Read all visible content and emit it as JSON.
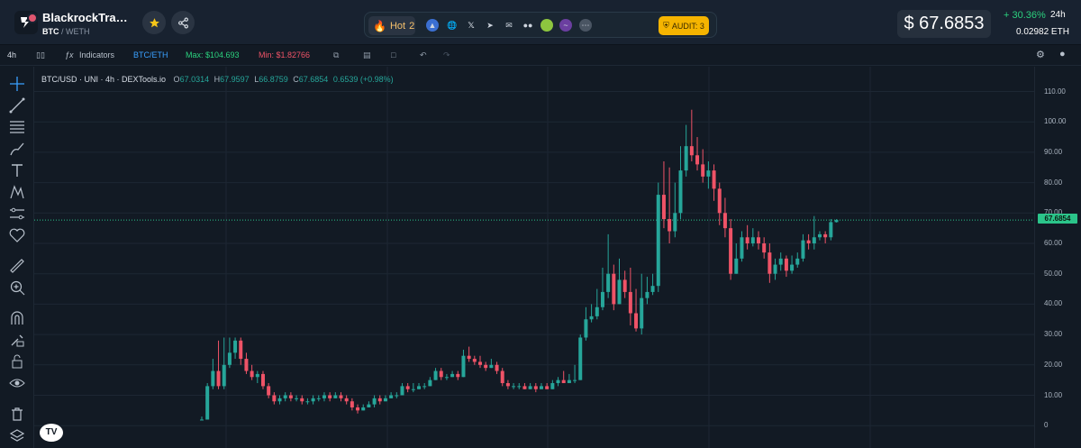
{
  "header": {
    "token_name": "BlackrockTradin…",
    "base": "BTC",
    "quote": "/ WETH",
    "hot_label": "Hot",
    "hot_rank": "2",
    "audit_label": "AUDIT: 3",
    "price_usd": "$ 67.6853",
    "change_pct": "+ 30.36%",
    "change_period": "24h",
    "price_eth": "0.02982 ETH"
  },
  "toolbar": {
    "interval": "4h",
    "indicators": "Indicators",
    "pair_toggle": "BTC/ETH",
    "max_label": "Max: $104.693",
    "min_label": "Min: $1.82766"
  },
  "legend": {
    "symbol": "BTC/USD · UNI · 4h · DEXTools.io",
    "open_label": "O",
    "open": "67.0314",
    "high_label": "H",
    "high": "67.9597",
    "low_label": "L",
    "low": "66.8759",
    "close_label": "C",
    "close": "67.6854",
    "change": "0.6539 (+0.98%)"
  },
  "colors": {
    "up": "#26a69a",
    "down": "#ef5367",
    "accent": "#2bd17e",
    "background": "#121a24",
    "audit": "#f5b400",
    "hot": "#f5a623"
  },
  "icons": [
    "logo-icon",
    "star-icon",
    "share-icon",
    "fire-icon",
    "coinmarketcap-icon",
    "globe-icon",
    "x-icon",
    "telegram-icon",
    "mail-icon",
    "medium-icon",
    "coingecko-icon",
    "scan-icon",
    "more-icon",
    "shield-icon",
    "settings-icon",
    "camera-icon"
  ],
  "chart_data": {
    "type": "candlestick",
    "symbol": "BTC/USD",
    "interval": "4h",
    "ylim": [
      -3,
      112
    ],
    "y_ticks": [
      "110.00",
      "100.00",
      "90.00",
      "80.00",
      "70.00",
      "60.00",
      "50.00",
      "40.00",
      "30.00",
      "20.00",
      "10.00",
      "0"
    ],
    "last_price_label": "67.6854",
    "last_price": 67.6854,
    "candles": [
      [
        2,
        2,
        3,
        2
      ],
      [
        2,
        13,
        14,
        2
      ],
      [
        13,
        18,
        22,
        12
      ],
      [
        18,
        13,
        28,
        12
      ],
      [
        13,
        20,
        29,
        12
      ],
      [
        20,
        24,
        29,
        19
      ],
      [
        24,
        28,
        29,
        22
      ],
      [
        28,
        22,
        29,
        20
      ],
      [
        22,
        18,
        24,
        17
      ],
      [
        18,
        16,
        20,
        15
      ],
      [
        16,
        17,
        18,
        14
      ],
      [
        17,
        13,
        18,
        12
      ],
      [
        13,
        10,
        14,
        9
      ],
      [
        10,
        8,
        11,
        7
      ],
      [
        8,
        9,
        10,
        7
      ],
      [
        9,
        10,
        11,
        8
      ],
      [
        10,
        9,
        11,
        8
      ],
      [
        9,
        9,
        10,
        8
      ],
      [
        9,
        8,
        10,
        7
      ],
      [
        8,
        8,
        9,
        7
      ],
      [
        8,
        9,
        10,
        7
      ],
      [
        9,
        9,
        10,
        8
      ],
      [
        9,
        10,
        11,
        8
      ],
      [
        10,
        9,
        11,
        8
      ],
      [
        9,
        10,
        11,
        9
      ],
      [
        10,
        9,
        11,
        8
      ],
      [
        9,
        8,
        10,
        7
      ],
      [
        8,
        6,
        9,
        5
      ],
      [
        6,
        5,
        7,
        4
      ],
      [
        5,
        6,
        7,
        5
      ],
      [
        6,
        7,
        8,
        6
      ],
      [
        7,
        9,
        10,
        6
      ],
      [
        9,
        8,
        10,
        7
      ],
      [
        8,
        9,
        10,
        8
      ],
      [
        9,
        10,
        11,
        9
      ],
      [
        10,
        10,
        11,
        9
      ],
      [
        10,
        13,
        14,
        10
      ],
      [
        13,
        12,
        14,
        11
      ],
      [
        12,
        12,
        14,
        11
      ],
      [
        12,
        13,
        14,
        12
      ],
      [
        13,
        13,
        14,
        12
      ],
      [
        13,
        15,
        16,
        13
      ],
      [
        15,
        18,
        19,
        15
      ],
      [
        18,
        16,
        19,
        15
      ],
      [
        16,
        16,
        17,
        15
      ],
      [
        16,
        17,
        18,
        16
      ],
      [
        17,
        16,
        18,
        15
      ],
      [
        16,
        23,
        25,
        16
      ],
      [
        23,
        22,
        26,
        21
      ],
      [
        22,
        21,
        23,
        20
      ],
      [
        21,
        20,
        23,
        19
      ],
      [
        20,
        19,
        21,
        18
      ],
      [
        19,
        20,
        22,
        19
      ],
      [
        20,
        18,
        21,
        17
      ],
      [
        18,
        14,
        19,
        13
      ],
      [
        14,
        13,
        15,
        12
      ],
      [
        13,
        13,
        14,
        12
      ],
      [
        13,
        13,
        14,
        12
      ],
      [
        13,
        12,
        14,
        12
      ],
      [
        12,
        13,
        14,
        12
      ],
      [
        13,
        12,
        14,
        11
      ],
      [
        12,
        13,
        14,
        12
      ],
      [
        13,
        12,
        14,
        12
      ],
      [
        12,
        14,
        15,
        12
      ],
      [
        14,
        15,
        16,
        13
      ],
      [
        15,
        14,
        18,
        14
      ],
      [
        14,
        15,
        17,
        14
      ],
      [
        15,
        15,
        20,
        14
      ],
      [
        15,
        29,
        30,
        15
      ],
      [
        29,
        35,
        39,
        28
      ],
      [
        35,
        36,
        40,
        34
      ],
      [
        36,
        39,
        45,
        35
      ],
      [
        39,
        44,
        52,
        38
      ],
      [
        44,
        50,
        63,
        42
      ],
      [
        50,
        40,
        53,
        38
      ],
      [
        40,
        48,
        55,
        40
      ],
      [
        48,
        44,
        51,
        42
      ],
      [
        44,
        37,
        52,
        33
      ],
      [
        37,
        32,
        45,
        31
      ],
      [
        32,
        42,
        50,
        30
      ],
      [
        42,
        44,
        49,
        40
      ],
      [
        44,
        46,
        50,
        43
      ],
      [
        46,
        76,
        80,
        44
      ],
      [
        76,
        68,
        87,
        65
      ],
      [
        68,
        64,
        85,
        60
      ],
      [
        64,
        70,
        80,
        62
      ],
      [
        70,
        84,
        92,
        68
      ],
      [
        84,
        92,
        99,
        82
      ],
      [
        92,
        89,
        104,
        87
      ],
      [
        89,
        86,
        95,
        84
      ],
      [
        86,
        82,
        91,
        80
      ],
      [
        82,
        84,
        87,
        78
      ],
      [
        84,
        78,
        86,
        74
      ],
      [
        78,
        70,
        80,
        66
      ],
      [
        70,
        65,
        75,
        62
      ],
      [
        65,
        50,
        68,
        48
      ],
      [
        50,
        55,
        60,
        50
      ],
      [
        55,
        62,
        64,
        54
      ],
      [
        62,
        60,
        66,
        58
      ],
      [
        60,
        62,
        65,
        59
      ],
      [
        62,
        60,
        64,
        58
      ],
      [
        60,
        57,
        62,
        55
      ],
      [
        57,
        50,
        60,
        47
      ],
      [
        50,
        53,
        55,
        48
      ],
      [
        53,
        55,
        57,
        51
      ],
      [
        55,
        51,
        56,
        49
      ],
      [
        51,
        53,
        56,
        50
      ],
      [
        53,
        55,
        57,
        52
      ],
      [
        55,
        61,
        63,
        54
      ],
      [
        61,
        60,
        63,
        58
      ],
      [
        60,
        62,
        69,
        58
      ],
      [
        62,
        63,
        64,
        61
      ],
      [
        63,
        62,
        64,
        60
      ],
      [
        62,
        67,
        68,
        61
      ],
      [
        67,
        67.6854,
        67.9597,
        66.8759
      ]
    ]
  }
}
